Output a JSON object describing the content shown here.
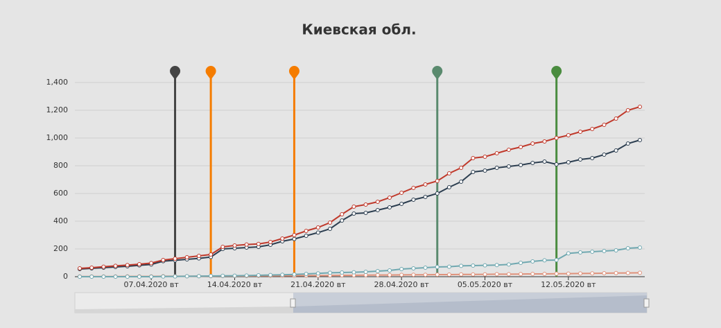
{
  "chart_data": {
    "type": "line",
    "title": "Киевская обл.",
    "categories": [
      null,
      null,
      null,
      null,
      null,
      null,
      "07.04.2020 вт",
      null,
      null,
      null,
      null,
      null,
      null,
      "14.04.2020 вт",
      null,
      null,
      null,
      null,
      null,
      null,
      "21.04.2020 вт",
      null,
      null,
      null,
      null,
      null,
      null,
      "28.04.2020 вт",
      null,
      null,
      null,
      null,
      null,
      null,
      "05.05.2020 вт",
      null,
      null,
      null,
      null,
      null,
      null,
      "12.05.2020 вт",
      null,
      null,
      null,
      null,
      null,
      null
    ],
    "series": [
      {
        "color": "#c0392b",
        "values": [
          60,
          65,
          72,
          78,
          84,
          90,
          98,
          120,
          130,
          140,
          150,
          160,
          215,
          225,
          232,
          236,
          250,
          275,
          300,
          330,
          355,
          390,
          450,
          505,
          520,
          540,
          570,
          605,
          640,
          665,
          690,
          745,
          785,
          855,
          865,
          890,
          915,
          935,
          960,
          975,
          1000,
          1020,
          1045,
          1065,
          1095,
          1140,
          1200,
          1225
        ]
      },
      {
        "color": "#2c3e50",
        "values": [
          55,
          60,
          65,
          70,
          75,
          82,
          88,
          112,
          118,
          125,
          132,
          142,
          200,
          205,
          210,
          215,
          230,
          255,
          272,
          295,
          318,
          345,
          405,
          455,
          460,
          480,
          500,
          525,
          555,
          575,
          600,
          645,
          685,
          755,
          765,
          785,
          795,
          805,
          820,
          830,
          810,
          825,
          845,
          855,
          880,
          910,
          960,
          985
        ]
      },
      {
        "color": "#6fa8b0",
        "values": [
          0,
          0,
          0,
          0,
          0,
          0,
          0,
          1,
          2,
          3,
          4,
          5,
          6,
          7,
          8,
          10,
          12,
          14,
          16,
          20,
          24,
          28,
          30,
          32,
          35,
          40,
          45,
          55,
          60,
          65,
          70,
          72,
          78,
          80,
          82,
          84,
          88,
          100,
          110,
          118,
          120,
          168,
          175,
          180,
          185,
          190,
          205,
          210
        ]
      },
      {
        "color": "#e0917a",
        "values": [
          1,
          1,
          1,
          1,
          2,
          2,
          2,
          3,
          3,
          3,
          4,
          4,
          5,
          5,
          5,
          6,
          6,
          7,
          7,
          8,
          8,
          9,
          10,
          10,
          11,
          12,
          12,
          13,
          14,
          14,
          15,
          15,
          16,
          16,
          17,
          18,
          18,
          19,
          20,
          20,
          21,
          22,
          23,
          24,
          25,
          26,
          27,
          28
        ]
      }
    ],
    "events": [
      {
        "index": 8,
        "color": "#444444"
      },
      {
        "index": 11,
        "color": "#f57c00"
      },
      {
        "index": 18,
        "color": "#f57c00"
      },
      {
        "index": 30,
        "color": "#5a8a6e"
      },
      {
        "index": 40,
        "color": "#4a8c3f"
      }
    ],
    "ylim": [
      0,
      1400
    ],
    "yticks": [
      0,
      200,
      400,
      600,
      800,
      {
        "value": 1000,
        "label": "1,000"
      },
      {
        "value": 1200,
        "label": "1,200"
      },
      {
        "value": 1400,
        "label": "1,400"
      }
    ],
    "grid": true
  }
}
